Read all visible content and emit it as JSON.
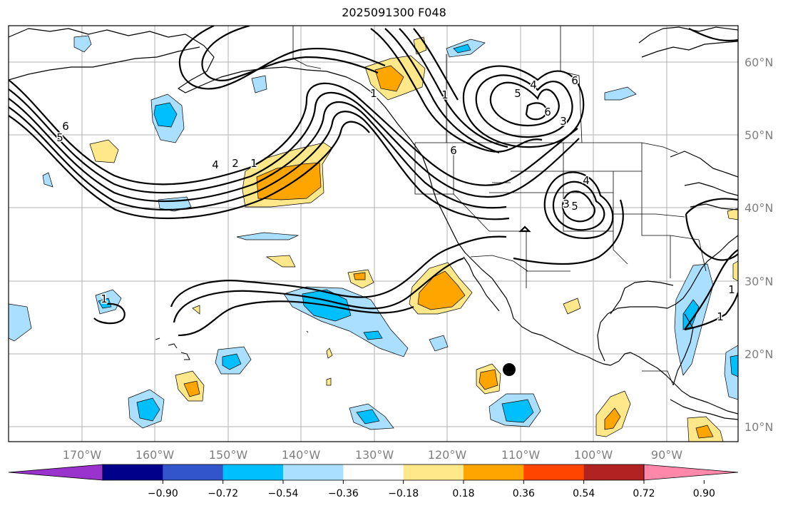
{
  "title": "2025091300 F048",
  "map": {
    "lon_labels": [
      "170°W",
      "160°W",
      "150°W",
      "140°W",
      "130°W",
      "120°W",
      "110°W",
      "100°W",
      "90°W"
    ],
    "lat_labels": [
      "60°N",
      "50°N",
      "40°N",
      "30°N",
      "20°N",
      "10°N"
    ],
    "contour_labels": [
      "6",
      "5",
      "4",
      "2",
      "1",
      "1",
      "4",
      "5",
      "6",
      "3",
      "5",
      "4",
      "3",
      "6",
      "1",
      "1",
      "1",
      "1",
      "6"
    ],
    "colors": {
      "land_line": "#000000",
      "grid": "#b0b0b0",
      "contour": "#000000"
    }
  },
  "colorbar": {
    "colors": [
      "#9933cc",
      "#00008b",
      "#3355cc",
      "#00bfff",
      "#aadfff",
      "#ffffff",
      "#ffe88a",
      "#ffa500",
      "#ff4500",
      "#b22222",
      "#ff88aa"
    ],
    "tick_labels": [
      "−0.90",
      "−0.72",
      "−0.54",
      "−0.36",
      "−0.18",
      "0.18",
      "0.36",
      "0.54",
      "0.72",
      "0.90"
    ]
  }
}
